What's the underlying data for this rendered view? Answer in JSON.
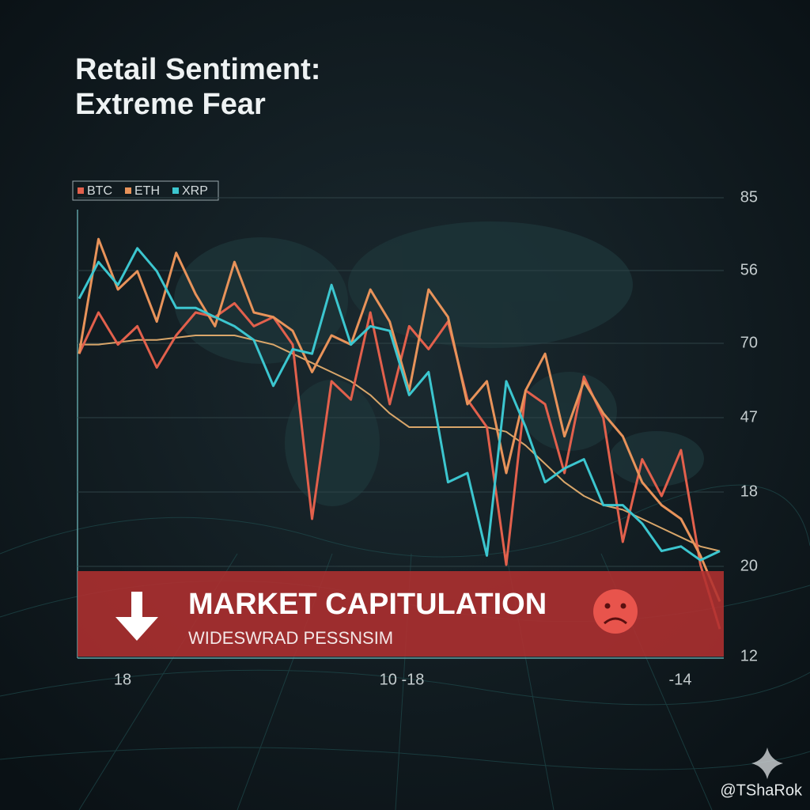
{
  "chart_data": {
    "type": "line",
    "title": [
      "Retail Sentiment:",
      "Extreme Fear"
    ],
    "series": [
      {
        "name": "BTC",
        "color": "#e2604c",
        "values": [
          66,
          75,
          68,
          72,
          63,
          70,
          75,
          74,
          77,
          72,
          74,
          68,
          30,
          60,
          56,
          75,
          55,
          72,
          67,
          73,
          56,
          50,
          20,
          58,
          55,
          40,
          61,
          52,
          25,
          43,
          35,
          45,
          20,
          6
        ]
      },
      {
        "name": "ETH",
        "color": "#e8935a",
        "values": [
          66,
          91,
          80,
          84,
          73,
          88,
          79,
          72,
          86,
          75,
          74,
          71,
          62,
          70,
          68,
          80,
          73,
          58,
          80,
          74,
          55,
          60,
          40,
          58,
          66,
          48,
          60,
          53,
          48,
          38,
          33,
          30,
          22,
          12
        ]
      },
      {
        "name": "XRP",
        "color": "#3cc6cf",
        "values": [
          78,
          86,
          81,
          89,
          84,
          76,
          76,
          74,
          72,
          69,
          59,
          67,
          66,
          81,
          68,
          72,
          71,
          57,
          62,
          38,
          40,
          22,
          60,
          50,
          38,
          41,
          43,
          33,
          33,
          29,
          23,
          24,
          21,
          23
        ]
      }
    ],
    "trend": {
      "color": "#d9a66a",
      "values": [
        68,
        68,
        68.5,
        69,
        69,
        69.5,
        70,
        70,
        70,
        69,
        68,
        66,
        64,
        62,
        60,
        57,
        53,
        50,
        50,
        50,
        50,
        50,
        49,
        46,
        42,
        38,
        35,
        33,
        32,
        30,
        28,
        26,
        24,
        23
      ]
    },
    "ylim": [
      0,
      100
    ],
    "y_labels": [
      "85",
      "56",
      "70",
      "47",
      "18",
      "20",
      "12"
    ],
    "x_labels": [
      "18",
      "10 -18",
      "-14"
    ],
    "banner": {
      "title": "MARKET CAPITULATION",
      "subtitle": "WIDESWRAD PESSNSIM",
      "color": "#b03030"
    },
    "watermark": "@TShaRok"
  }
}
